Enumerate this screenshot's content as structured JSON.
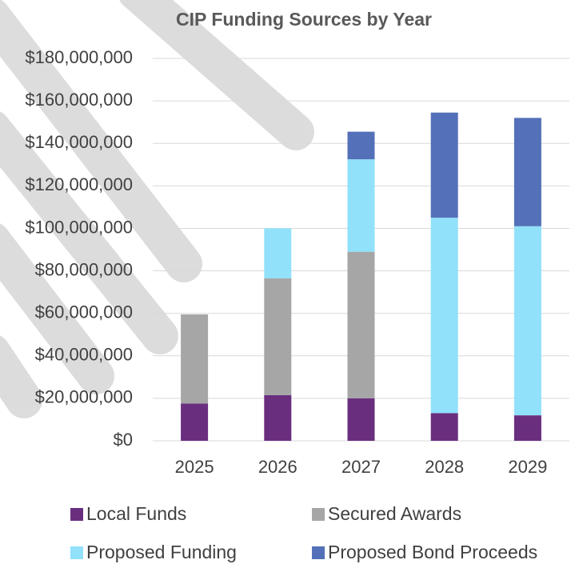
{
  "chart_data": {
    "type": "stacked_bar",
    "title": "CIP Funding Sources by Year",
    "categories": [
      "2025",
      "2026",
      "2027",
      "2028",
      "2029"
    ],
    "series": [
      {
        "name": "Local Funds",
        "color": "#6a2e7f",
        "values": [
          17500000,
          21500000,
          20000000,
          13000000,
          12000000
        ]
      },
      {
        "name": "Secured Awards",
        "color": "#a6a6a6",
        "values": [
          42000000,
          55000000,
          69000000,
          0,
          0
        ]
      },
      {
        "name": "Proposed Funding",
        "color": "#91e1fb",
        "values": [
          0,
          23500000,
          43500000,
          92000000,
          89000000
        ]
      },
      {
        "name": "Proposed Bond Proceeds",
        "color": "#5470b8",
        "values": [
          0,
          0,
          13000000,
          49500000,
          51000000
        ]
      }
    ],
    "ylim": [
      0,
      180000000
    ],
    "yticks": [
      {
        "value": 0,
        "label": "$0"
      },
      {
        "value": 20000000,
        "label": "$20,000,000"
      },
      {
        "value": 40000000,
        "label": "$40,000,000"
      },
      {
        "value": 60000000,
        "label": "$60,000,000"
      },
      {
        "value": 80000000,
        "label": "$80,000,000"
      },
      {
        "value": 100000000,
        "label": "$100,000,000"
      },
      {
        "value": 120000000,
        "label": "$120,000,000"
      },
      {
        "value": 140000000,
        "label": "$140,000,000"
      },
      {
        "value": 160000000,
        "label": "$160,000,000"
      },
      {
        "value": 180000000,
        "label": "$180,000,000"
      }
    ],
    "grid": true
  }
}
